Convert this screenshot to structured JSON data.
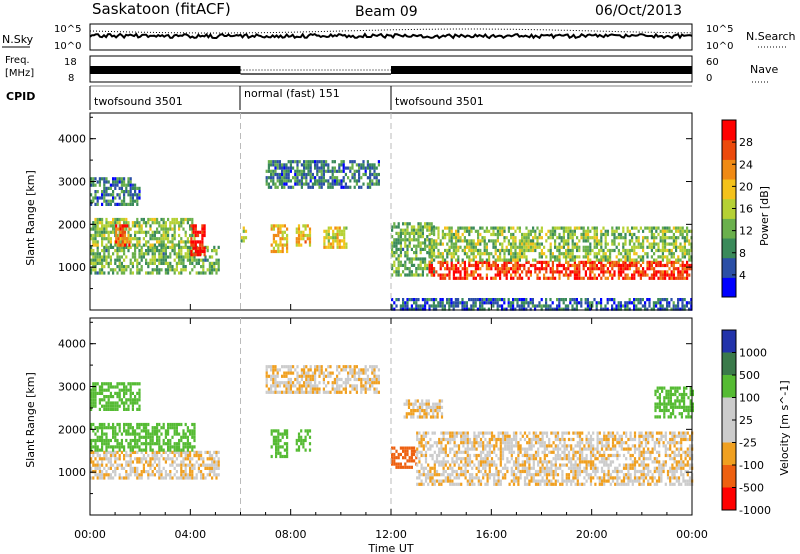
{
  "header": {
    "station": "Saskatoon (fitACF)",
    "beam": "Beam 09",
    "date": "06/Oct/2013"
  },
  "noise_panel": {
    "left_label": "N.Sky",
    "right_label": "N.Search",
    "left_ticks": [
      "10^5",
      "10^0"
    ],
    "right_ticks": [
      "10^5",
      "10^0"
    ]
  },
  "freq_panel": {
    "left_label_1": "Freq.",
    "left_label_2": "[MHz]",
    "right_label": "Nave",
    "left_ticks": [
      "18",
      "8"
    ],
    "right_ticks": [
      "60",
      "0"
    ]
  },
  "cpid": {
    "label": "CPID",
    "segments": [
      {
        "label": "twofsound 3501",
        "start_hour": 0,
        "end_hour": 6
      },
      {
        "label": "normal (fast) 151",
        "start_hour": 6,
        "end_hour": 12
      },
      {
        "label": "twofsound 3501",
        "start_hour": 12,
        "end_hour": 24
      }
    ]
  },
  "chart_data": [
    {
      "type": "heatmap",
      "name": "power",
      "ylabel": "Slant Range [km]",
      "xlabel": "",
      "xlim": [
        0,
        24
      ],
      "ylim": [
        0,
        4600
      ],
      "yticks": [
        "1000",
        "2000",
        "3000",
        "4000"
      ],
      "colorbar": {
        "label": "Power [dB]",
        "range": [
          0,
          32
        ],
        "ticks": [
          "4",
          "8",
          "12",
          "16",
          "20",
          "24",
          "28"
        ],
        "colors": [
          "#0000ff",
          "#2b4fa6",
          "#3a8a5a",
          "#6ab04c",
          "#b5d134",
          "#f4c21b",
          "#f08a14",
          "#ec4a0c",
          "#ff0000"
        ]
      },
      "echo_regions": [
        {
          "t0": 0.0,
          "t1": 5.1,
          "r0": 850,
          "r1": 1500,
          "value": 12
        },
        {
          "t0": 0.0,
          "t1": 4.2,
          "r0": 1500,
          "r1": 2150,
          "value": 14
        },
        {
          "t0": 0.0,
          "t1": 2.0,
          "r0": 2500,
          "r1": 3100,
          "value": 8
        },
        {
          "t0": 1.0,
          "t1": 1.6,
          "r0": 1500,
          "r1": 2000,
          "value": 26
        },
        {
          "t0": 4.0,
          "t1": 4.6,
          "r0": 1300,
          "r1": 2000,
          "value": 30
        },
        {
          "t0": 6.0,
          "t1": 6.2,
          "r0": 1500,
          "r1": 1950,
          "value": 14
        },
        {
          "t0": 7.2,
          "t1": 7.9,
          "r0": 1400,
          "r1": 2000,
          "value": 20
        },
        {
          "t0": 8.2,
          "t1": 8.8,
          "r0": 1500,
          "r1": 2000,
          "value": 20
        },
        {
          "t0": 9.3,
          "t1": 10.2,
          "r0": 1500,
          "r1": 1950,
          "value": 18
        },
        {
          "t0": 7.0,
          "t1": 11.5,
          "r0": 2900,
          "r1": 3500,
          "value": 8
        },
        {
          "t0": 12.0,
          "t1": 13.7,
          "r0": 850,
          "r1": 2050,
          "value": 12
        },
        {
          "t0": 13.5,
          "t1": 24.0,
          "r0": 750,
          "r1": 1150,
          "value": 28
        },
        {
          "t0": 13.5,
          "t1": 24.0,
          "r0": 1150,
          "r1": 1950,
          "value": 14
        },
        {
          "t0": 12.0,
          "t1": 24.0,
          "r0": 0,
          "r1": 280,
          "value": 6
        }
      ]
    },
    {
      "type": "heatmap",
      "name": "velocity",
      "ylabel": "Slant Range [km]",
      "xlabel": "Time UT",
      "xlim": [
        0,
        24
      ],
      "ylim": [
        0,
        4600
      ],
      "xticks": [
        "00:00",
        "04:00",
        "08:00",
        "12:00",
        "16:00",
        "20:00",
        "00:00"
      ],
      "yticks": [
        "1000",
        "2000",
        "3000",
        "4000"
      ],
      "colorbar": {
        "label": "Velocity [m s^-1]",
        "ticks": [
          "1000",
          "500",
          "100",
          "25",
          "-25",
          "-100",
          "-500",
          "-1000"
        ],
        "colors": [
          "#2233aa",
          "#3a7a4a",
          "#55bb33",
          "#cccccc",
          "#cccccc",
          "#f0a020",
          "#ee6010",
          "#ff0000"
        ]
      },
      "echo_regions": [
        {
          "t0": 0.0,
          "t1": 5.1,
          "r0": 850,
          "r1": 1500,
          "value": 0
        },
        {
          "t0": 0.0,
          "t1": 4.2,
          "r0": 1500,
          "r1": 2150,
          "value": 300
        },
        {
          "t0": 0.0,
          "t1": 2.0,
          "r0": 2500,
          "r1": 3100,
          "value": 400
        },
        {
          "t0": 7.2,
          "t1": 7.9,
          "r0": 1400,
          "r1": 2000,
          "value": 300
        },
        {
          "t0": 8.2,
          "t1": 8.8,
          "r0": 1500,
          "r1": 2000,
          "value": 300
        },
        {
          "t0": 7.0,
          "t1": 11.5,
          "r0": 2900,
          "r1": 3500,
          "value": 0
        },
        {
          "t0": 12.0,
          "t1": 13.0,
          "r0": 1100,
          "r1": 1600,
          "value": -200
        },
        {
          "t0": 13.0,
          "t1": 24.0,
          "r0": 750,
          "r1": 1950,
          "value": 0
        },
        {
          "t0": 12.5,
          "t1": 14.0,
          "r0": 2300,
          "r1": 2700,
          "value": 0
        },
        {
          "t0": 22.5,
          "t1": 24.0,
          "r0": 2300,
          "r1": 3000,
          "value": 300
        }
      ]
    }
  ]
}
